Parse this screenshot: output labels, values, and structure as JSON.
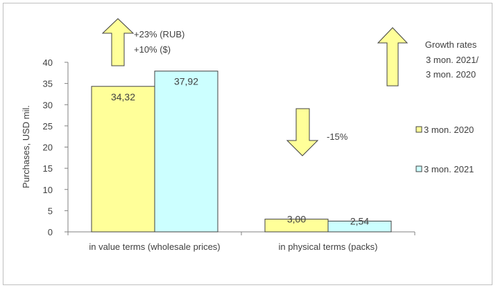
{
  "chart_data": {
    "type": "bar",
    "ylabel": "Purchases, USD mil.",
    "xlabel": "",
    "ylim": [
      0,
      40
    ],
    "yticks": [
      0,
      5,
      10,
      15,
      20,
      25,
      30,
      35,
      40
    ],
    "categories": [
      "in value terms (wholesale prices)",
      "in physical terms (packs)"
    ],
    "series": [
      {
        "name": "3 mon. 2020",
        "values": [
          34.32,
          3.0
        ],
        "labels": [
          "34,32",
          "3,00"
        ],
        "color": "#FFFF99"
      },
      {
        "name": "3 mon. 2021",
        "values": [
          37.92,
          2.54
        ],
        "labels": [
          "37,92",
          "2,54"
        ],
        "color": "#CCFFFF"
      }
    ],
    "legend_position": "right",
    "grid": false,
    "annotations": {
      "growth_value": [
        "+23% (RUB)",
        "+10% ($)"
      ],
      "growth_physical": "-15%",
      "growth_rates_note": [
        "Growth rates",
        "3 mon.  2021/",
        "3 mon. 2020"
      ]
    },
    "arrow_color": "#FFFF99"
  }
}
